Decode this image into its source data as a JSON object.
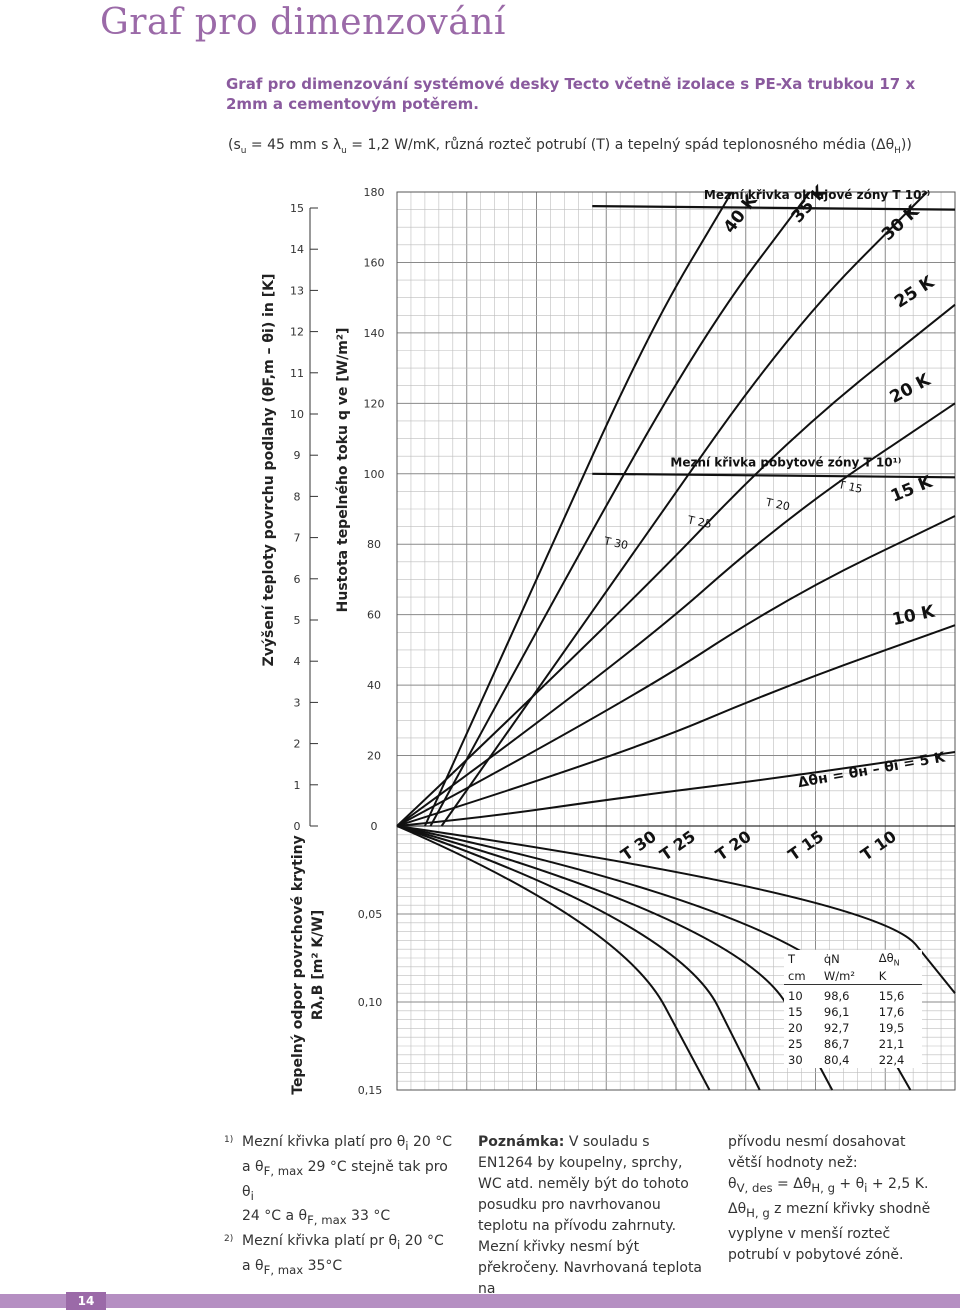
{
  "page": {
    "title": "Graf pro dimenzování",
    "subtitle": "Graf pro dimenzování systémové desky Tecto včetně izolace s PE-Xa trubkou 17 x 2mm a cementovým potěrem.",
    "params_prefix": "(s",
    "params_sub1": "u",
    "params_mid1": " = 45 mm s λ",
    "params_sub2": "u",
    "params_mid2": " = 1,2 W/mK, různá rozteč potrubí (T) a tepelný spád teplonosného média (Δθ",
    "params_sub3": "H",
    "params_end": "))",
    "page_number": "14"
  },
  "chart_data": {
    "type": "line",
    "axes": {
      "q_label": "Hustota tepelného toku q ve [W/m²]",
      "q_ticks": [
        "180",
        "160",
        "140",
        "120",
        "100",
        "80",
        "60",
        "40",
        "20",
        "0"
      ],
      "q_range": [
        0,
        180
      ],
      "dt_label": "Zvýšení teploty povrchu podlahy (θF,m – θi) in [K]",
      "dt_ticks": [
        "15",
        "14",
        "13",
        "12",
        "11",
        "10",
        "9",
        "8",
        "7",
        "6",
        "5",
        "4",
        "3",
        "2",
        "1",
        "0"
      ],
      "r_label_line1": "Tepelný odpor povrchové krytiny",
      "r_label_line2": "Rλ,B [m² K/W]",
      "r_ticks": [
        "0,05",
        "0,10",
        "0,15"
      ],
      "r_range": [
        0,
        0.15
      ],
      "grid": true
    },
    "delta_series": [
      {
        "label": "Δθн = θн – θi = 5 K",
        "points": [
          [
            0,
            0
          ],
          [
            0.15,
            2.3
          ],
          [
            0.4,
            8
          ],
          [
            0.7,
            14
          ],
          [
            1,
            21
          ]
        ]
      },
      {
        "label": "10 K",
        "points": [
          [
            0,
            0
          ],
          [
            0.4,
            20
          ],
          [
            0.7,
            40
          ],
          [
            1,
            57
          ]
        ]
      },
      {
        "label": "15 K",
        "points": [
          [
            0,
            0
          ],
          [
            0.4,
            34
          ],
          [
            0.7,
            65
          ],
          [
            1,
            88
          ]
        ]
      },
      {
        "label": "20 K",
        "points": [
          [
            0,
            0
          ],
          [
            0.4,
            46
          ],
          [
            0.7,
            88
          ],
          [
            1,
            120
          ]
        ]
      },
      {
        "label": "25 K",
        "points": [
          [
            0,
            0
          ],
          [
            0.4,
            60
          ],
          [
            0.7,
            110
          ],
          [
            1,
            148
          ]
        ]
      },
      {
        "label": "30 K",
        "points": [
          [
            0.08,
            0
          ],
          [
            0.4,
            72
          ],
          [
            0.7,
            140
          ],
          [
            0.95,
            180
          ]
        ]
      },
      {
        "label": "35 K",
        "points": [
          [
            0.06,
            0
          ],
          [
            0.3,
            70
          ],
          [
            0.55,
            140
          ],
          [
            0.74,
            180
          ]
        ]
      },
      {
        "label": "40 K",
        "points": [
          [
            0.05,
            0
          ],
          [
            0.25,
            70
          ],
          [
            0.45,
            140
          ],
          [
            0.6,
            180
          ]
        ]
      }
    ],
    "pitch_labels": [
      {
        "label": "T 30",
        "pos": [
          0.37,
          80
        ]
      },
      {
        "label": "T 25",
        "pos": [
          0.52,
          86
        ]
      },
      {
        "label": "T 20",
        "pos": [
          0.66,
          91
        ]
      },
      {
        "label": "T 15",
        "pos": [
          0.79,
          96
        ]
      }
    ],
    "limit_curves": [
      {
        "label": "Mezní křivka pobytové zóny T 10¹⁾",
        "points": [
          [
            0.35,
            100
          ],
          [
            1,
            99
          ]
        ]
      },
      {
        "label": "Mezní křivka okrajové zóny T 10²⁾",
        "points": [
          [
            0.35,
            176
          ],
          [
            1,
            175
          ]
        ]
      }
    ],
    "resistance_series": [
      {
        "label": "T 30",
        "points": [
          [
            0,
            0
          ],
          [
            0.4,
            0.055
          ],
          [
            0.56,
            0.15
          ]
        ]
      },
      {
        "label": "T 25",
        "points": [
          [
            0,
            0
          ],
          [
            0.5,
            0.055
          ],
          [
            0.65,
            0.15
          ]
        ]
      },
      {
        "label": "T 20",
        "points": [
          [
            0,
            0
          ],
          [
            0.62,
            0.055
          ],
          [
            0.78,
            0.15
          ]
        ]
      },
      {
        "label": "T 15",
        "points": [
          [
            0,
            0
          ],
          [
            0.74,
            0.05
          ],
          [
            0.92,
            0.15
          ]
        ]
      },
      {
        "label": "T 10",
        "points": [
          [
            0,
            0
          ],
          [
            0.86,
            0.04
          ],
          [
            1,
            0.095
          ]
        ]
      }
    ],
    "table": {
      "headers": [
        "T",
        "q̇N",
        "Δθ",
        "N"
      ],
      "units": [
        "cm",
        "W/m²",
        "K"
      ],
      "rows": [
        [
          "10",
          "98,6",
          "15,6"
        ],
        [
          "15",
          "96,1",
          "17,6"
        ],
        [
          "20",
          "92,7",
          "19,5"
        ],
        [
          "25",
          "86,7",
          "21,1"
        ],
        [
          "30",
          "80,4",
          "22,4"
        ]
      ]
    }
  },
  "notes": {
    "n1_mark": "1)",
    "n1_a": "Mezní křivka platí pro θ",
    "n1_a_sub": "i",
    "n1_b": " 20 °C",
    "n1_c": "a θ",
    "n1_c_sub": "F, max",
    "n1_d": " 29 °C stejně tak pro  θ",
    "n1_d_sub": "i",
    "n1_e": "24 °C a θ",
    "n1_e_sub": "F, max",
    "n1_f": " 33 °C",
    "n2_mark": "2)",
    "n2_a": "Mezní křivka platí pr θ",
    "n2_a_sub": "i",
    "n2_b": " 20 °C",
    "n2_c": "a θ",
    "n2_c_sub": "F, max",
    "n2_d": " 35°C",
    "remark_label": "Poznámka:",
    "remark_text": " V souladu s EN1264 by koupelny, sprchy, WC atd. neměly být do tohoto posudku pro navrhovanou teplotu na přívodu zahrnuty. Mezní křivky nesmí být překročeny. Navrhovaná teplota na",
    "cont_a": "přívodu nesmí dosahovat větší hodnoty než:",
    "cont_b": "θ",
    "cont_b_sub": "V, des",
    "cont_c": " = Δθ",
    "cont_c_sub": "H, g",
    "cont_d": " + θ",
    "cont_d_sub": "i",
    "cont_e": " + 2,5 K.",
    "cont_f": "Δθ",
    "cont_f_sub": "H, g",
    "cont_g": " z mezní křivky shodně vyplyne v menší rozteč potrubí v pobytové zóně."
  }
}
